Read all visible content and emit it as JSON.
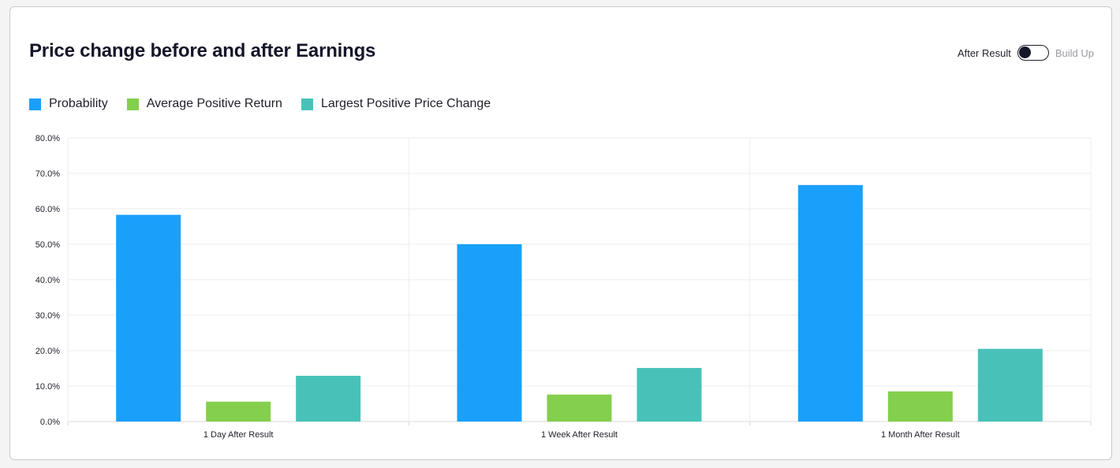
{
  "header": {
    "title": "Price change before and after Earnings",
    "toggle_left_label": "After Result",
    "toggle_right_label": "Build Up"
  },
  "colors": {
    "probability": "#1aa0fb",
    "average_positive_return": "#84cf4d",
    "largest_positive_price_change": "#48c2b9"
  },
  "chart_data": {
    "type": "bar",
    "title": "Price change before and after Earnings",
    "categories": [
      "1 Day After Result",
      "1 Week After Result",
      "1 Month After Result"
    ],
    "series": [
      {
        "name": "Probability",
        "color": "#1aa0fb",
        "values": [
          58.3,
          50.0,
          66.7
        ]
      },
      {
        "name": "Average Positive Return",
        "color": "#84cf4d",
        "values": [
          5.6,
          7.6,
          8.5
        ]
      },
      {
        "name": "Largest Positive Price Change",
        "color": "#48c2b9",
        "values": [
          12.9,
          15.1,
          20.5
        ]
      }
    ],
    "ylim": [
      0,
      80
    ],
    "yticks": [
      "0.0%",
      "10.0%",
      "20.0%",
      "30.0%",
      "40.0%",
      "50.0%",
      "60.0%",
      "70.0%",
      "80.0%"
    ],
    "xlabel": "",
    "ylabel": "",
    "legend": "top-left",
    "grid": true
  }
}
